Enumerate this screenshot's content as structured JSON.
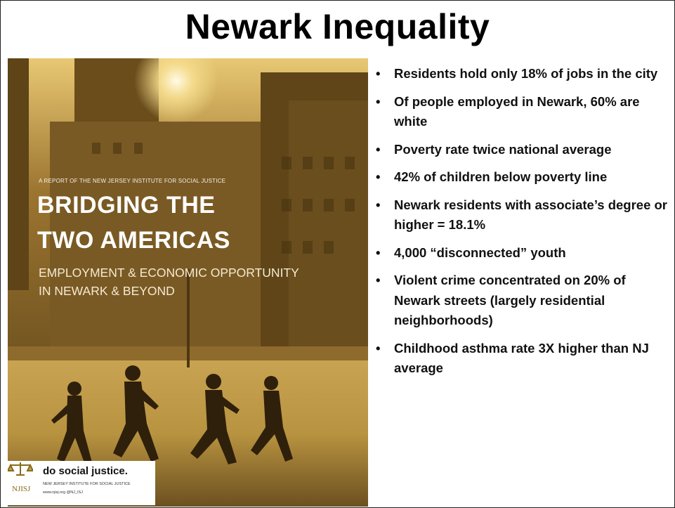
{
  "title": "Newark Inequality",
  "cover": {
    "kicker": "A REPORT OF THE NEW JERSEY INSTITUTE FOR SOCIAL JUSTICE",
    "headline_1": "BRIDGING THE",
    "headline_2": "TWO AMERICAS",
    "subtitle_1": "EMPLOYMENT & ECONOMIC OPPORTUNITY",
    "subtitle_2": "IN NEWARK & BEYOND",
    "logo": {
      "mark": "NJISJ",
      "slogan": "do social justice.",
      "org": "NEW JERSEY INSTITUTE FOR SOCIAL JUSTICE",
      "contact": "www.njisj.org  @NJ_ISJ"
    }
  },
  "bullets": [
    "Residents hold only 18% of jobs in the city",
    "Of people employed in Newark, 60% are white",
    "Poverty rate twice national average",
    "42% of children below poverty line",
    "Newark residents with associate’s degree or higher = 18.1%",
    "4,000 “disconnected” youth",
    "Violent crime concentrated on 20% of Newark streets (largely residential neighborhoods)",
    "Childhood asthma rate 3X higher than NJ average"
  ]
}
